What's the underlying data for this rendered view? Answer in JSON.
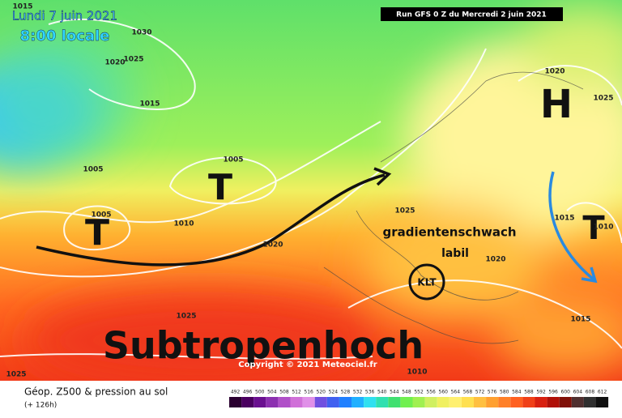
{
  "header": {
    "date": "Lundi 7 juin 2021",
    "time": "8:00 locale",
    "run": "Run GFS 0 Z du Mercredi 2 juin 2021"
  },
  "annotations": {
    "high": "H",
    "lows": [
      "T",
      "T",
      "T"
    ],
    "subtropical": "Subtropenhoch",
    "weak_gradient": "gradientenschwach",
    "unstable": "labil",
    "cut_off": "KLT"
  },
  "isobars": [
    1015,
    1030,
    1025,
    1020,
    1015,
    1005,
    1005,
    1005,
    1010,
    1020,
    1025,
    1020,
    1025,
    1015,
    1010,
    1020,
    1015,
    1025,
    1025,
    1010
  ],
  "copyright": "Copyright © 2021 Meteociel.fr",
  "footer": {
    "title": "Géop. Z500 & pression au sol",
    "lead": "(+ 126h)"
  },
  "legend": {
    "ticks": [
      492,
      496,
      500,
      504,
      508,
      512,
      516,
      520,
      524,
      528,
      532,
      536,
      540,
      544,
      548,
      552,
      556,
      560,
      564,
      568,
      572,
      576,
      580,
      584,
      588,
      592,
      596,
      600,
      604,
      608,
      612
    ]
  }
}
